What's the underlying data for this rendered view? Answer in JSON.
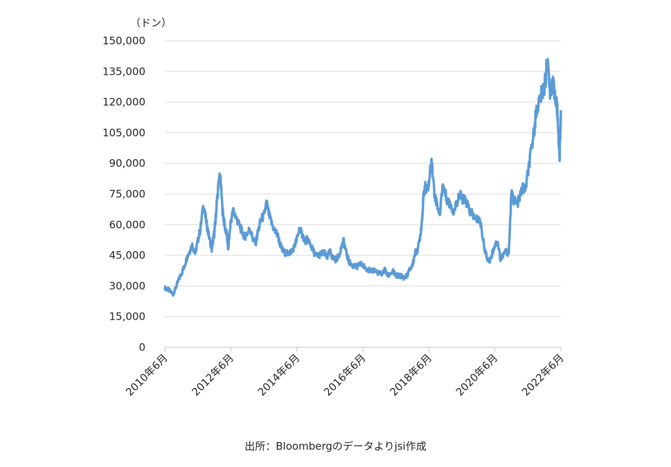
{
  "chart_data": {
    "type": "line",
    "ylabel_unit": "（ドン）",
    "ylim": [
      0,
      150000
    ],
    "yticks": [
      "150,000",
      "135,000",
      "120,000",
      "105,000",
      "90,000",
      "75,000",
      "60,000",
      "45,000",
      "30,000",
      "15,000",
      "0"
    ],
    "ytick_values": [
      150000,
      135000,
      120000,
      105000,
      90000,
      75000,
      60000,
      45000,
      30000,
      15000,
      0
    ],
    "xlim": [
      2010.5,
      2022.5
    ],
    "xticks": [
      "2010年6月",
      "2012年6月",
      "2014年6月",
      "2016年6月",
      "2018年6月",
      "2020年6月",
      "2022年6月"
    ],
    "xtick_values": [
      2010.5,
      2012.5,
      2014.5,
      2016.5,
      2018.5,
      2020.5,
      2022.5
    ],
    "grid": "horizontal",
    "legend": "none",
    "line_color": "#5B9BD5",
    "series": [
      {
        "x": [
          2010.5,
          2010.58,
          2010.66,
          2010.75,
          2010.83,
          2010.92,
          2011.0,
          2011.08,
          2011.17,
          2011.25,
          2011.33,
          2011.42,
          2011.5,
          2011.58,
          2011.67,
          2011.75,
          2011.83,
          2011.92,
          2011.96,
          2012.0,
          2012.04,
          2012.08,
          2012.17,
          2012.25,
          2012.29,
          2012.33,
          2012.38,
          2012.42,
          2012.5,
          2012.58,
          2012.67,
          2012.75,
          2012.83,
          2012.92,
          2013.0,
          2013.08,
          2013.17,
          2013.25,
          2013.33,
          2013.42,
          2013.5,
          2013.58,
          2013.67,
          2013.75,
          2013.83,
          2013.92,
          2014.0,
          2014.08,
          2014.17,
          2014.25,
          2014.33,
          2014.42,
          2014.5,
          2014.58,
          2014.67,
          2014.75,
          2014.83,
          2014.92,
          2015.0,
          2015.08,
          2015.17,
          2015.25,
          2015.33,
          2015.42,
          2015.5,
          2015.58,
          2015.67,
          2015.75,
          2015.83,
          2015.92,
          2016.0,
          2016.08,
          2016.17,
          2016.25,
          2016.33,
          2016.42,
          2016.5,
          2016.58,
          2016.67,
          2016.75,
          2016.83,
          2016.92,
          2017.0,
          2017.08,
          2017.17,
          2017.25,
          2017.33,
          2017.42,
          2017.5,
          2017.58,
          2017.67,
          2017.75,
          2017.83,
          2017.92,
          2018.0,
          2018.08,
          2018.17,
          2018.25,
          2018.29,
          2018.33,
          2018.38,
          2018.42,
          2018.5,
          2018.58,
          2018.67,
          2018.75,
          2018.83,
          2018.92,
          2019.0,
          2019.08,
          2019.17,
          2019.25,
          2019.33,
          2019.42,
          2019.5,
          2019.58,
          2019.67,
          2019.75,
          2019.83,
          2019.92,
          2020.0,
          2020.08,
          2020.17,
          2020.25,
          2020.33,
          2020.42,
          2020.5,
          2020.58,
          2020.67,
          2020.75,
          2020.83,
          2020.92,
          2021.0,
          2021.08,
          2021.17,
          2021.25,
          2021.33,
          2021.42,
          2021.5,
          2021.58,
          2021.67,
          2021.75,
          2021.83,
          2021.92,
          2022.0,
          2022.04,
          2022.08,
          2022.17,
          2022.25,
          2022.33,
          2022.38,
          2022.42,
          2022.46,
          2022.5
        ],
        "values": [
          29000,
          28500,
          27500,
          26000,
          29000,
          33000,
          36000,
          39000,
          44000,
          47000,
          50000,
          46000,
          52000,
          58000,
          70000,
          62000,
          55000,
          48000,
          52000,
          56000,
          63000,
          72000,
          86000,
          67000,
          62000,
          58000,
          55000,
          48000,
          62000,
          67000,
          63000,
          60000,
          57000,
          54000,
          56000,
          58000,
          53000,
          51000,
          57000,
          63000,
          64000,
          71000,
          64000,
          60000,
          57000,
          55000,
          50000,
          47000,
          46000,
          46000,
          47000,
          49000,
          53000,
          58000,
          55000,
          52000,
          53000,
          50000,
          47000,
          45000,
          45000,
          46000,
          46000,
          44000,
          47000,
          44000,
          43000,
          44000,
          48000,
          52000,
          46000,
          42000,
          40000,
          40000,
          39000,
          41000,
          40000,
          39000,
          38000,
          37000,
          38000,
          37000,
          36000,
          36000,
          38000,
          35000,
          36000,
          37000,
          35000,
          35000,
          35000,
          34000,
          35000,
          38000,
          40000,
          46000,
          48000,
          56000,
          62000,
          72000,
          79000,
          76000,
          80000,
          92000,
          75000,
          70000,
          65000,
          80000,
          75000,
          71000,
          70000,
          66000,
          70000,
          75000,
          73000,
          72000,
          70000,
          66000,
          65000,
          62000,
          63000,
          60000,
          50000,
          44000,
          42000,
          46000,
          50000,
          52000,
          43000,
          45000,
          47000,
          46000,
          75000,
          72000,
          70000,
          73000,
          78000,
          77000,
          85000,
          94000,
          104000,
          115000,
          120000,
          124000,
          128000,
          132000,
          140000,
          125000,
          130000,
          122000,
          118000,
          107000,
          92000,
          116000
        ]
      }
    ]
  },
  "source_text": "出所：Bloombergのデータよりjsi作成"
}
